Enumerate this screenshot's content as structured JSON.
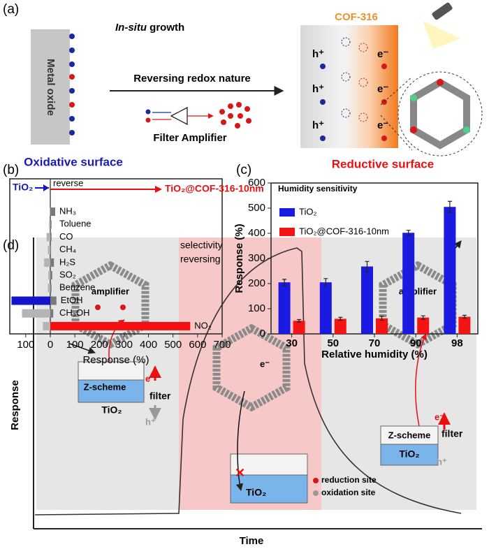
{
  "panel_a": {
    "label": "(a)",
    "in_situ": "In-situ",
    "growth": "growth",
    "metal_oxide": "Metal oxide",
    "arrow_text": "Reversing redox nature",
    "filter_amplifier": "Filter Amplifier",
    "oxidative": "Oxidative surface",
    "cof": "COF-316",
    "hole": "h⁺",
    "electron": "e⁻",
    "reductive": "Reductive surface"
  },
  "panel_b": {
    "label": "(b)"
  },
  "panel_c": {
    "label": "(c)"
  },
  "panel_d": {
    "label": "(d)",
    "ylabel": "Response",
    "xlabel": "Time",
    "reversing_1": "selectivity",
    "reversing_2": "reversing",
    "amplifier": "amplifier",
    "zscheme": "Z-scheme",
    "filter": "filter",
    "tio2": "TiO₂",
    "hole": "h⁺",
    "electron": "e⁻",
    "reduction_site": "reduction site",
    "oxidation_site": "oxidation site"
  },
  "chart_data": [
    {
      "type": "bar",
      "orientation": "horizontal",
      "annotation": "reverse",
      "categories": [
        "NH₃",
        "Toluene",
        "CO",
        "CH₄",
        "H₂S",
        "SO₂",
        "Benzene",
        "EtOH",
        "CH₃OH",
        "NO₂"
      ],
      "series": [
        {
          "name": "TiO₂",
          "color": "#1414c8",
          "colors": [
            "#b4b4b4",
            "#b4b4b4",
            "#b4b4b4",
            "#b4b4b4",
            "#b4b4b4",
            "#b4b4b4",
            "#b4b4b4",
            "#1414c8",
            "#b4b4b4",
            "#b4b4b4"
          ],
          "values": [
            -2,
            -5,
            -15,
            -10,
            -25,
            -8,
            -10,
            -158,
            -115,
            -30
          ]
        },
        {
          "name": "TiO₂@COF-316-10nm",
          "color": "#e81010",
          "colors": [
            "#7a7a7a",
            "#7a7a7a",
            "#7a7a7a",
            "#7a7a7a",
            "#7a7a7a",
            "#7a7a7a",
            "#7a7a7a",
            "#7a7a7a",
            "#7a7a7a",
            "#f41010"
          ],
          "values": [
            20,
            5,
            5,
            3,
            15,
            8,
            5,
            25,
            12,
            570
          ]
        }
      ],
      "xlabel": "Response (%)",
      "xlim": [
        -165,
        700
      ],
      "xticks": [
        {
          "value": -100,
          "label": "100"
        },
        0,
        100,
        200,
        300,
        400,
        500,
        600,
        700
      ]
    },
    {
      "type": "bar",
      "annotation": "Humidity sensitivity",
      "categories": [
        "30",
        "50",
        "70",
        "90",
        "98"
      ],
      "series": [
        {
          "name": "TiO₂",
          "color": "#1a1ae0",
          "values": [
            205,
            205,
            268,
            402,
            505
          ],
          "errors": [
            12,
            15,
            20,
            10,
            22
          ]
        },
        {
          "name": "TiO₂@COF-316-10nm",
          "color": "#f41414",
          "values": [
            52,
            60,
            62,
            65,
            68
          ],
          "errors": [
            5,
            6,
            8,
            7,
            6
          ]
        }
      ],
      "xlabel": "Relative humidity (%)",
      "ylabel": "Response (%)",
      "ylim": [
        0,
        600
      ],
      "yticks": [
        0,
        100,
        200,
        300,
        400,
        500,
        600
      ],
      "legend": "upper-left"
    }
  ]
}
